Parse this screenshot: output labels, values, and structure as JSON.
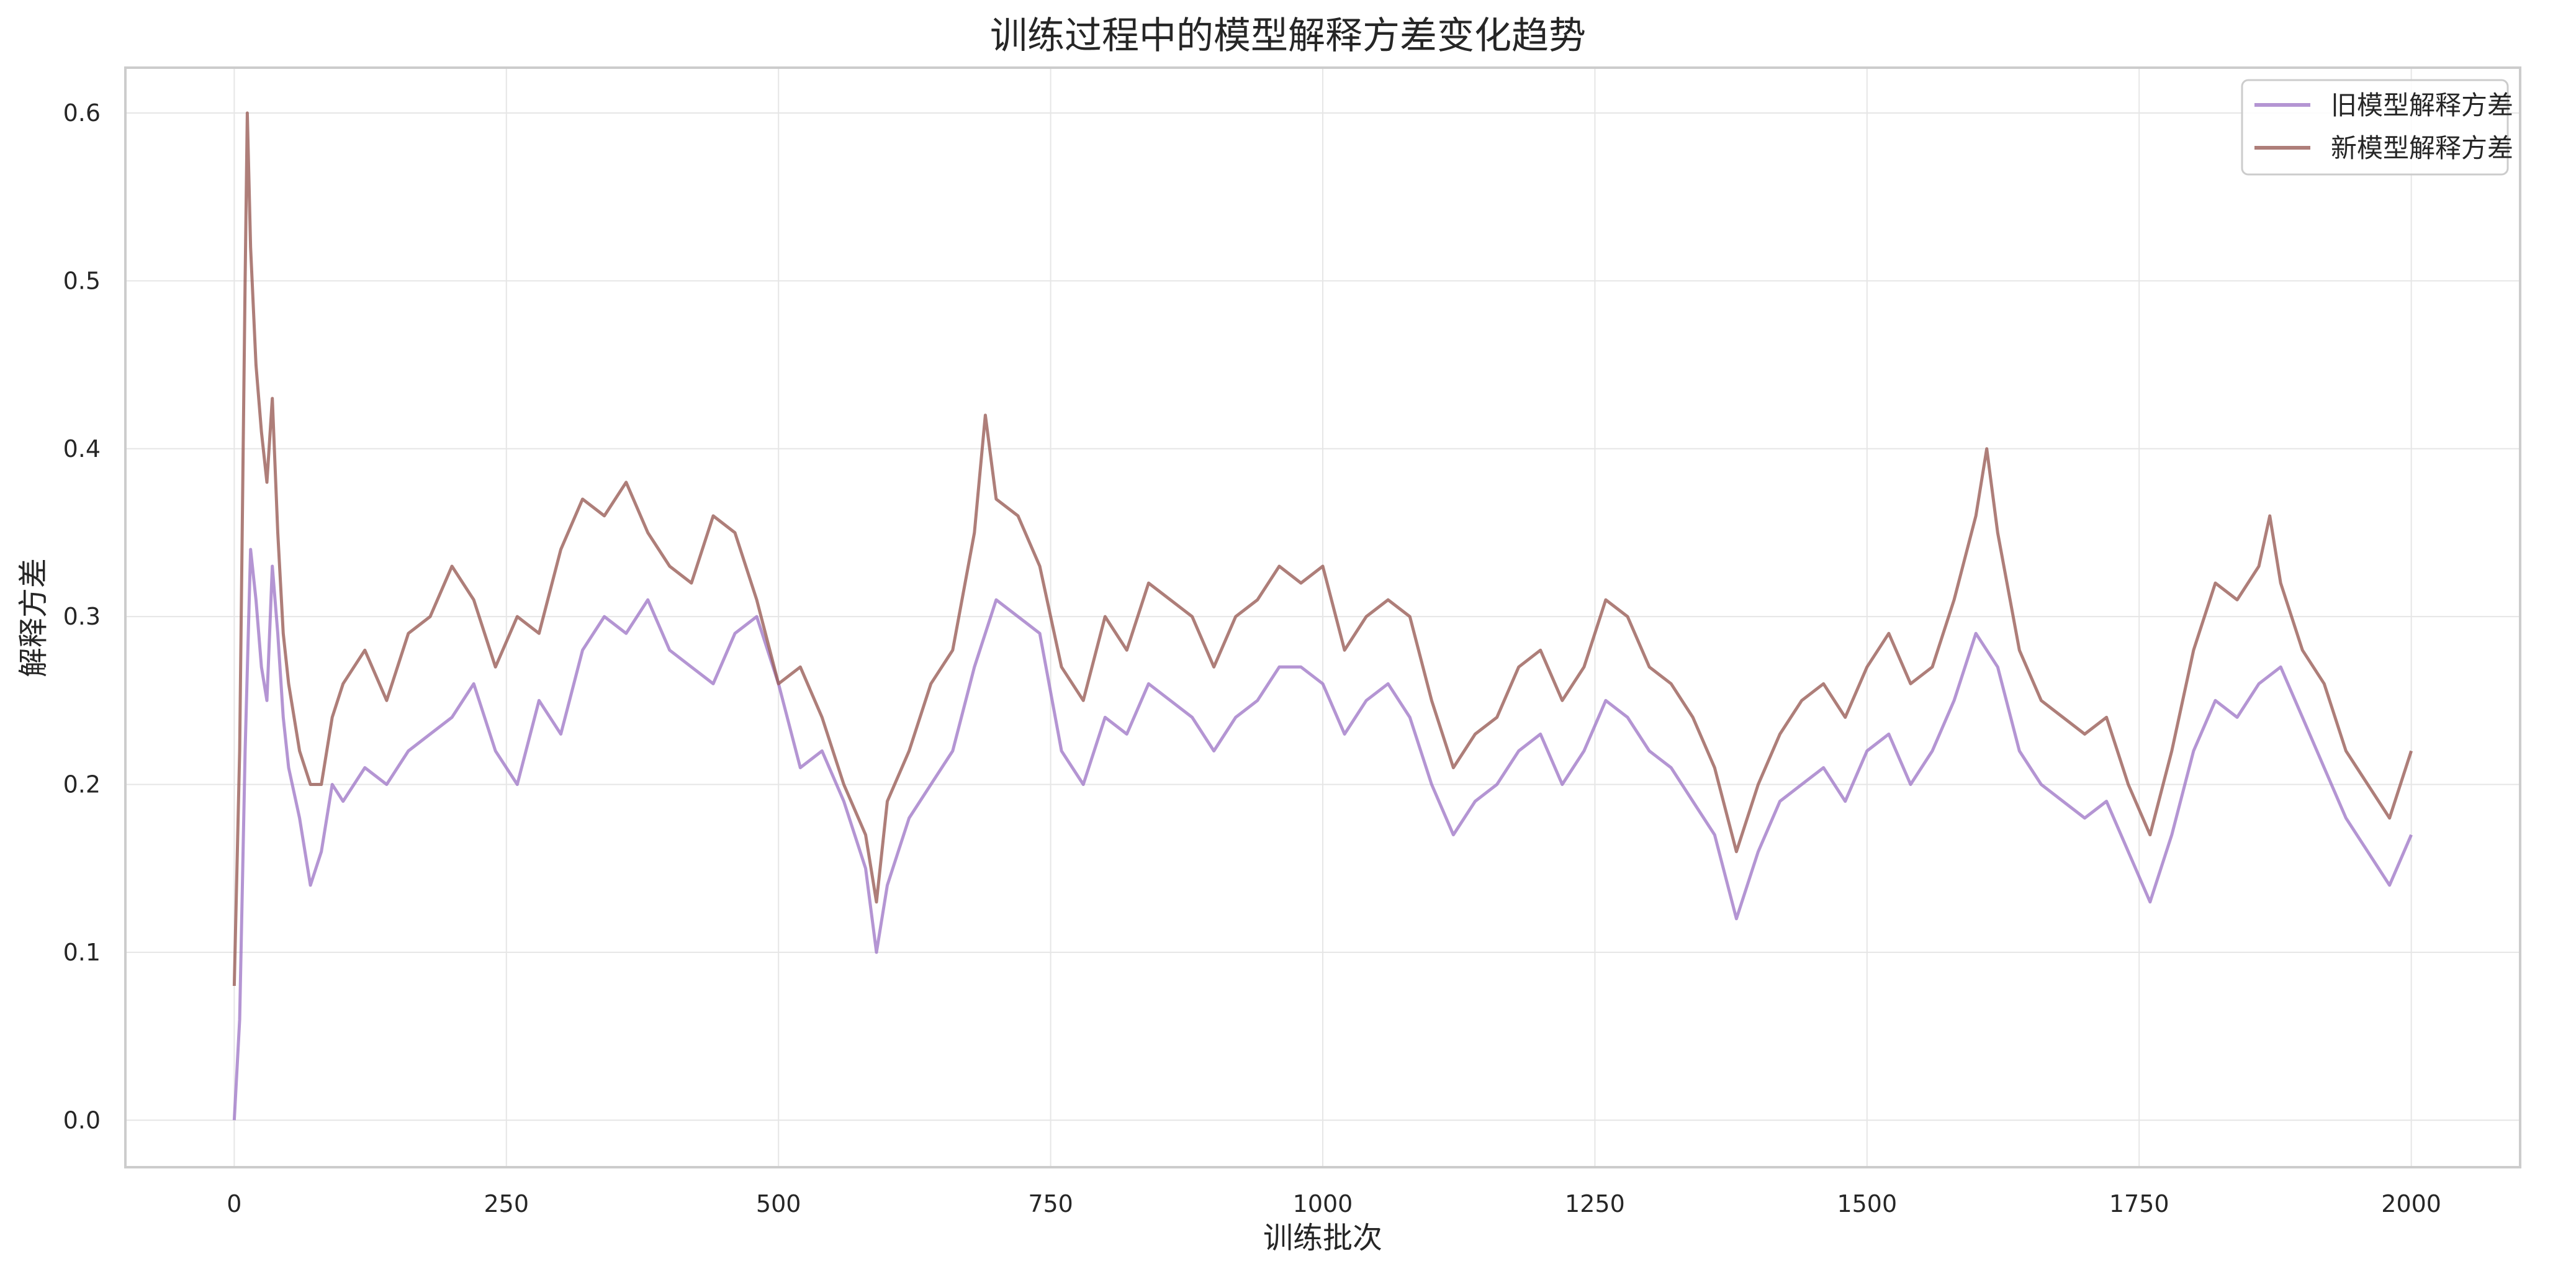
{
  "chart_data": {
    "type": "line",
    "title": "训练过程中的模型解释方差变化趋势",
    "xlabel": "训练批次",
    "ylabel": "解释方差",
    "xlim": [
      -100,
      2100
    ],
    "ylim": [
      -0.028,
      0.627
    ],
    "xticks": [
      0,
      250,
      500,
      750,
      1000,
      1250,
      1500,
      1750,
      2000
    ],
    "yticks": [
      0.0,
      0.1,
      0.2,
      0.3,
      0.4,
      0.5,
      0.6
    ],
    "ytick_labels": [
      "0.0",
      "0.1",
      "0.2",
      "0.3",
      "0.4",
      "0.5",
      "0.6"
    ],
    "grid": true,
    "legend_position": "top-right",
    "series": [
      {
        "name": "旧模型解释方差",
        "color": "#9b72c4",
        "alpha": 0.75,
        "x": [
          0,
          5,
          10,
          15,
          20,
          25,
          30,
          35,
          40,
          45,
          50,
          60,
          70,
          80,
          90,
          100,
          120,
          140,
          160,
          180,
          200,
          220,
          240,
          260,
          280,
          300,
          320,
          340,
          360,
          380,
          400,
          420,
          440,
          460,
          480,
          500,
          520,
          540,
          560,
          580,
          590,
          600,
          620,
          640,
          660,
          680,
          700,
          720,
          740,
          760,
          780,
          800,
          820,
          840,
          860,
          880,
          900,
          920,
          940,
          960,
          980,
          1000,
          1020,
          1040,
          1060,
          1080,
          1100,
          1120,
          1140,
          1160,
          1180,
          1200,
          1220,
          1240,
          1260,
          1280,
          1300,
          1320,
          1340,
          1360,
          1380,
          1400,
          1420,
          1440,
          1460,
          1480,
          1500,
          1520,
          1540,
          1560,
          1580,
          1600,
          1620,
          1640,
          1660,
          1680,
          1700,
          1720,
          1740,
          1760,
          1780,
          1800,
          1820,
          1840,
          1860,
          1880,
          1900,
          1920,
          1940,
          1960,
          1980,
          2000
        ],
        "y": [
          0.0,
          0.06,
          0.22,
          0.34,
          0.31,
          0.27,
          0.25,
          0.33,
          0.29,
          0.24,
          0.21,
          0.18,
          0.14,
          0.16,
          0.2,
          0.19,
          0.21,
          0.2,
          0.22,
          0.23,
          0.24,
          0.26,
          0.22,
          0.2,
          0.25,
          0.23,
          0.28,
          0.3,
          0.29,
          0.31,
          0.28,
          0.27,
          0.26,
          0.29,
          0.3,
          0.26,
          0.21,
          0.22,
          0.19,
          0.15,
          0.1,
          0.14,
          0.18,
          0.2,
          0.22,
          0.27,
          0.31,
          0.3,
          0.29,
          0.22,
          0.2,
          0.24,
          0.23,
          0.26,
          0.25,
          0.24,
          0.22,
          0.24,
          0.25,
          0.27,
          0.27,
          0.26,
          0.23,
          0.25,
          0.26,
          0.24,
          0.2,
          0.17,
          0.19,
          0.2,
          0.22,
          0.23,
          0.2,
          0.22,
          0.25,
          0.24,
          0.22,
          0.21,
          0.19,
          0.17,
          0.12,
          0.16,
          0.19,
          0.2,
          0.21,
          0.19,
          0.22,
          0.23,
          0.2,
          0.22,
          0.25,
          0.29,
          0.27,
          0.22,
          0.2,
          0.19,
          0.18,
          0.19,
          0.16,
          0.13,
          0.17,
          0.22,
          0.25,
          0.24,
          0.26,
          0.27,
          0.24,
          0.21,
          0.18,
          0.16,
          0.14,
          0.17
        ]
      },
      {
        "name": "新模型解释方差",
        "color": "#9a5e58",
        "alpha": 0.8,
        "x": [
          0,
          5,
          10,
          12,
          15,
          20,
          25,
          30,
          35,
          40,
          45,
          50,
          60,
          70,
          80,
          90,
          100,
          120,
          140,
          160,
          180,
          200,
          220,
          240,
          260,
          280,
          300,
          320,
          340,
          360,
          380,
          400,
          420,
          440,
          460,
          480,
          500,
          520,
          540,
          560,
          580,
          590,
          600,
          620,
          640,
          660,
          680,
          690,
          700,
          720,
          740,
          760,
          780,
          800,
          820,
          840,
          860,
          880,
          900,
          920,
          940,
          960,
          980,
          1000,
          1020,
          1040,
          1060,
          1080,
          1100,
          1120,
          1140,
          1160,
          1180,
          1200,
          1220,
          1240,
          1260,
          1280,
          1300,
          1320,
          1340,
          1360,
          1380,
          1400,
          1420,
          1440,
          1460,
          1480,
          1500,
          1520,
          1540,
          1560,
          1580,
          1600,
          1610,
          1620,
          1640,
          1660,
          1680,
          1700,
          1720,
          1740,
          1760,
          1780,
          1800,
          1820,
          1840,
          1860,
          1870,
          1880,
          1900,
          1920,
          1940,
          1960,
          1980,
          2000
        ],
        "y": [
          0.08,
          0.22,
          0.5,
          0.6,
          0.52,
          0.45,
          0.41,
          0.38,
          0.43,
          0.35,
          0.29,
          0.26,
          0.22,
          0.2,
          0.2,
          0.24,
          0.26,
          0.28,
          0.25,
          0.29,
          0.3,
          0.33,
          0.31,
          0.27,
          0.3,
          0.29,
          0.34,
          0.37,
          0.36,
          0.38,
          0.35,
          0.33,
          0.32,
          0.36,
          0.35,
          0.31,
          0.26,
          0.27,
          0.24,
          0.2,
          0.17,
          0.13,
          0.19,
          0.22,
          0.26,
          0.28,
          0.35,
          0.42,
          0.37,
          0.36,
          0.33,
          0.27,
          0.25,
          0.3,
          0.28,
          0.32,
          0.31,
          0.3,
          0.27,
          0.3,
          0.31,
          0.33,
          0.32,
          0.33,
          0.28,
          0.3,
          0.31,
          0.3,
          0.25,
          0.21,
          0.23,
          0.24,
          0.27,
          0.28,
          0.25,
          0.27,
          0.31,
          0.3,
          0.27,
          0.26,
          0.24,
          0.21,
          0.16,
          0.2,
          0.23,
          0.25,
          0.26,
          0.24,
          0.27,
          0.29,
          0.26,
          0.27,
          0.31,
          0.36,
          0.4,
          0.35,
          0.28,
          0.25,
          0.24,
          0.23,
          0.24,
          0.2,
          0.17,
          0.22,
          0.28,
          0.32,
          0.31,
          0.33,
          0.36,
          0.32,
          0.28,
          0.26,
          0.22,
          0.2,
          0.18,
          0.22
        ]
      }
    ]
  }
}
